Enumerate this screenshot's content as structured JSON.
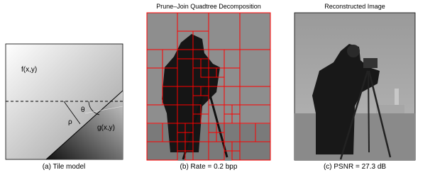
{
  "panels": [
    {
      "caption": "(a) Tile model",
      "labels": {
        "f": "f(x,y)",
        "g": "g(x,y)",
        "theta": "θ",
        "rho": "ρ"
      }
    },
    {
      "title": "Prune–Join Quadtree Decomposition",
      "caption": "(b) Rate = 0.2 bpp"
    },
    {
      "title": "Reconstructed Image",
      "caption": "(c) PSNR = 27.3 dB"
    }
  ]
}
